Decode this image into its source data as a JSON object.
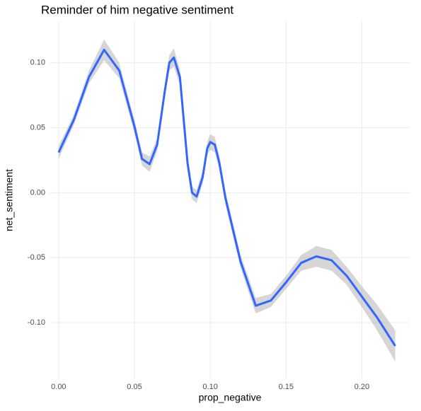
{
  "chart_data": {
    "type": "smooth",
    "title": "Reminder of him negative sentiment",
    "x_label": "prop_negative",
    "y_label": "net_sentiment",
    "x": [
      0.0,
      0.01,
      0.02,
      0.03,
      0.04,
      0.05,
      0.055,
      0.06,
      0.065,
      0.07,
      0.073,
      0.076,
      0.08,
      0.085,
      0.088,
      0.091,
      0.095,
      0.098,
      0.1,
      0.103,
      0.106,
      0.11,
      0.12,
      0.13,
      0.14,
      0.15,
      0.16,
      0.17,
      0.18,
      0.19,
      0.2,
      0.21,
      0.222
    ],
    "series": [
      {
        "color": "#3366ff",
        "band_color": "#999999",
        "values": [
          0.031,
          0.056,
          0.089,
          0.11,
          0.094,
          0.051,
          0.026,
          0.022,
          0.037,
          0.078,
          0.1,
          0.104,
          0.089,
          0.023,
          0.0,
          -0.003,
          0.012,
          0.034,
          0.039,
          0.037,
          0.023,
          -0.004,
          -0.053,
          -0.087,
          -0.083,
          -0.069,
          -0.054,
          -0.049,
          -0.052,
          -0.064,
          -0.08,
          -0.096,
          -0.118
        ],
        "lower": [
          0.026,
          0.052,
          0.084,
          0.102,
          0.088,
          0.046,
          0.021,
          0.016,
          0.032,
          0.073,
          0.094,
          0.097,
          0.083,
          0.018,
          -0.005,
          -0.008,
          0.007,
          0.029,
          0.033,
          0.031,
          0.018,
          -0.009,
          -0.058,
          -0.093,
          -0.088,
          -0.074,
          -0.06,
          -0.057,
          -0.06,
          -0.071,
          -0.088,
          -0.106,
          -0.13
        ],
        "upper": [
          0.036,
          0.06,
          0.094,
          0.118,
          0.1,
          0.056,
          0.031,
          0.028,
          0.042,
          0.083,
          0.106,
          0.111,
          0.095,
          0.028,
          0.005,
          0.002,
          0.017,
          0.039,
          0.045,
          0.043,
          0.028,
          0.001,
          -0.048,
          -0.081,
          -0.078,
          -0.064,
          -0.048,
          -0.041,
          -0.044,
          -0.057,
          -0.072,
          -0.086,
          -0.106
        ]
      }
    ],
    "xlim": [
      -0.006,
      0.232
    ],
    "ylim": [
      -0.143,
      0.132
    ],
    "xticks": [
      {
        "value": 0,
        "label": "0.00"
      },
      {
        "value": 0.05,
        "label": "0.05"
      },
      {
        "value": 0.1,
        "label": "0.10"
      },
      {
        "value": 0.15,
        "label": "0.15"
      },
      {
        "value": 0.2,
        "label": "0.20"
      }
    ],
    "yticks": [
      {
        "value": -0.1,
        "label": "-0.10"
      },
      {
        "value": -0.05,
        "label": "-0.05"
      },
      {
        "value": 0,
        "label": "0.00"
      },
      {
        "value": 0.05,
        "label": "0.05"
      },
      {
        "value": 0.1,
        "label": "0.10"
      }
    ],
    "grid": true
  }
}
